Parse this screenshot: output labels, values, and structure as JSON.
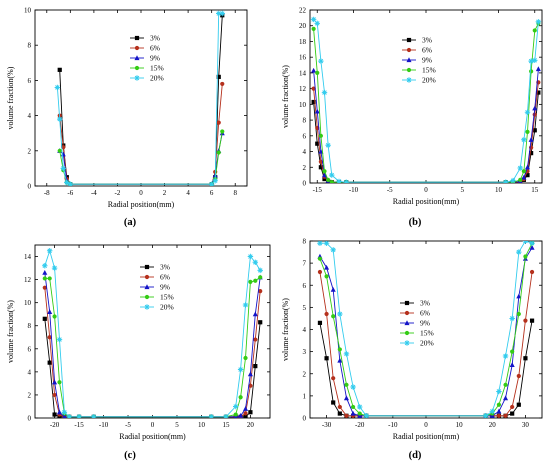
{
  "figure": {
    "background": "#ffffff"
  },
  "series_styles": [
    {
      "name": "3%",
      "color": "#000000",
      "marker": "square"
    },
    {
      "name": "6%",
      "color": "#b5301c",
      "marker": "circle"
    },
    {
      "name": "9%",
      "color": "#1414c8",
      "marker": "triangle-up"
    },
    {
      "name": "15%",
      "color": "#33cc14",
      "marker": "circle"
    },
    {
      "name": "20%",
      "color": "#33ccee",
      "marker": "star"
    }
  ],
  "chart_data": [
    {
      "panel_label": "(a)",
      "type": "line",
      "xlabel": "Radial position(mm)",
      "ylabel": "volume fraction(%)",
      "xlim": [
        -9,
        9
      ],
      "ylim": [
        0,
        10
      ],
      "xticks": [
        "-8",
        "-6",
        "-4",
        "-2",
        "0",
        "2",
        "4",
        "6",
        "8"
      ],
      "yticks": [
        "0",
        "2",
        "4",
        "6",
        "8",
        "10"
      ],
      "legend_position": "upper-center",
      "series": [
        {
          "name": "3%",
          "x": [
            -6.9,
            -6.6,
            -6.3,
            -6.0,
            6.0,
            6.3,
            6.6,
            6.9
          ],
          "y": [
            6.6,
            2.3,
            0.5,
            0.1,
            0.1,
            0.5,
            6.2,
            9.7
          ]
        },
        {
          "name": "6%",
          "x": [
            -6.9,
            -6.6,
            -6.3,
            -6.0,
            6.0,
            6.3,
            6.6,
            6.9
          ],
          "y": [
            4.0,
            2.2,
            0.4,
            0.1,
            0.1,
            0.8,
            3.6,
            5.8
          ]
        },
        {
          "name": "9%",
          "x": [
            -6.9,
            -6.6,
            -6.3,
            -6.0,
            6.0,
            6.3,
            6.6,
            6.9
          ],
          "y": [
            2.0,
            1.8,
            0.3,
            0.1,
            0.1,
            0.6,
            2.0,
            3.0
          ]
        },
        {
          "name": "15%",
          "x": [
            -6.9,
            -6.6,
            -6.3,
            -6.0,
            6.0,
            6.3,
            6.6,
            6.9
          ],
          "y": [
            2.0,
            0.9,
            0.2,
            0.1,
            0.1,
            0.4,
            1.9,
            3.1
          ]
        },
        {
          "name": "20%",
          "x": [
            -7.1,
            -6.9,
            -6.6,
            -6.3,
            -6.0,
            6.0,
            6.3,
            6.6,
            6.9
          ],
          "y": [
            5.6,
            3.8,
            1.0,
            0.2,
            0.1,
            0.1,
            0.3,
            9.8,
            9.8
          ]
        }
      ]
    },
    {
      "panel_label": "(b)",
      "type": "line",
      "xlabel": "Radial position(mm)",
      "ylabel": "volume fraction(%)",
      "xlim": [
        -16,
        16
      ],
      "ylim": [
        0,
        22
      ],
      "xticks": [
        "-15",
        "-10",
        "-5",
        "0",
        "5",
        "10",
        "15"
      ],
      "yticks": [
        "0",
        "2",
        "4",
        "6",
        "8",
        "10",
        "12",
        "14",
        "16",
        "18",
        "20",
        "22"
      ],
      "legend_position": "upper-center",
      "series": [
        {
          "name": "3%",
          "x": [
            -15.5,
            -15.0,
            -14.5,
            -14.0,
            -13.5,
            -13.0,
            -12.0,
            -11.0,
            11.0,
            12.0,
            13.0,
            13.5,
            14.0,
            14.5,
            15.0,
            15.5
          ],
          "y": [
            10.3,
            5.0,
            2.0,
            0.5,
            0.2,
            0.1,
            0.1,
            0.1,
            0.1,
            0.1,
            0.1,
            0.4,
            1.0,
            3.8,
            6.7,
            11.5
          ]
        },
        {
          "name": "6%",
          "x": [
            -15.5,
            -15.0,
            -14.5,
            -14.0,
            -13.5,
            -13.0,
            -12.0,
            -11.0,
            11.0,
            12.0,
            13.0,
            13.5,
            14.0,
            14.5,
            15.0,
            15.5
          ],
          "y": [
            12.0,
            7.0,
            2.7,
            0.8,
            0.3,
            0.1,
            0.1,
            0.1,
            0.1,
            0.1,
            0.1,
            0.5,
            1.5,
            4.5,
            8.7,
            12.8
          ]
        },
        {
          "name": "9%",
          "x": [
            -15.5,
            -15.0,
            -14.5,
            -14.0,
            -13.5,
            -13.0,
            -12.0,
            -11.0,
            11.0,
            12.0,
            13.0,
            13.5,
            14.0,
            14.5,
            15.0,
            15.5
          ],
          "y": [
            14.3,
            9.1,
            4.0,
            1.0,
            0.3,
            0.1,
            0.1,
            0.1,
            0.1,
            0.1,
            0.2,
            0.7,
            2.0,
            5.5,
            9.5,
            14.5
          ]
        },
        {
          "name": "15%",
          "x": [
            -15.5,
            -15.0,
            -14.5,
            -14.0,
            -13.5,
            -13.0,
            -12.0,
            -11.0,
            11.0,
            12.0,
            13.0,
            13.5,
            14.0,
            14.5,
            15.0,
            15.5
          ],
          "y": [
            19.6,
            14.0,
            6.0,
            1.5,
            0.4,
            0.1,
            0.1,
            0.1,
            0.1,
            0.1,
            0.4,
            1.5,
            6.5,
            14.2,
            19.4,
            20.3
          ]
        },
        {
          "name": "20%",
          "x": [
            -15.5,
            -15.0,
            -14.5,
            -14.0,
            -13.5,
            -13.0,
            -12.0,
            -11.0,
            11.0,
            12.0,
            13.0,
            13.5,
            14.0,
            14.5,
            15.0,
            15.5
          ],
          "y": [
            20.8,
            20.3,
            15.5,
            11.5,
            4.8,
            1.0,
            0.2,
            0.1,
            0.1,
            0.3,
            1.9,
            5.5,
            9.0,
            15.5,
            15.6,
            20.5
          ]
        }
      ]
    },
    {
      "panel_label": "(c)",
      "type": "line",
      "xlabel": "Radial position(mm)",
      "ylabel": "volume fraction(%)",
      "xlim": [
        -24,
        24
      ],
      "ylim": [
        0,
        15
      ],
      "xticks": [
        "-25",
        "-20",
        "-15",
        "-10",
        "-5",
        "0",
        "5",
        "10",
        "15",
        "20",
        "25"
      ],
      "yticks": [
        "0",
        "2",
        "4",
        "6",
        "8",
        "10",
        "12",
        "14"
      ],
      "legend_position": "upper-center",
      "series": [
        {
          "name": "3%",
          "x": [
            -22,
            -21,
            -20,
            -19,
            -18,
            -17,
            -15,
            -12,
            12,
            15,
            17,
            18,
            19,
            20,
            21,
            22
          ],
          "y": [
            8.6,
            4.8,
            0.3,
            0.1,
            0.1,
            0.1,
            0.1,
            0.1,
            0.1,
            0.1,
            0.1,
            0.1,
            0.1,
            0.5,
            4.5,
            8.3
          ]
        },
        {
          "name": "6%",
          "x": [
            -22,
            -21,
            -20,
            -19,
            -18,
            -17,
            -15,
            -12,
            12,
            15,
            17,
            18,
            19,
            20,
            21,
            22
          ],
          "y": [
            11.3,
            7.0,
            2.0,
            0.3,
            0.1,
            0.1,
            0.1,
            0.1,
            0.1,
            0.1,
            0.1,
            0.1,
            0.4,
            2.8,
            6.8,
            11.0
          ]
        },
        {
          "name": "9%",
          "x": [
            -22,
            -21,
            -20,
            -19,
            -18,
            -17,
            -15,
            -12,
            12,
            15,
            17,
            18,
            19,
            20,
            21,
            22
          ],
          "y": [
            12.6,
            9.2,
            3.1,
            0.5,
            0.1,
            0.1,
            0.1,
            0.1,
            0.1,
            0.1,
            0.1,
            0.2,
            0.8,
            3.8,
            9.0,
            12.2
          ]
        },
        {
          "name": "15%",
          "x": [
            -22,
            -21,
            -20,
            -19,
            -18,
            -17,
            -15,
            -12,
            12,
            15,
            17,
            18,
            19,
            20,
            21,
            22
          ],
          "y": [
            12.1,
            12.1,
            8.8,
            3.1,
            0.4,
            0.1,
            0.1,
            0.1,
            0.1,
            0.1,
            0.3,
            1.8,
            5.2,
            11.8,
            11.9,
            12.2
          ]
        },
        {
          "name": "20%",
          "x": [
            -22,
            -21,
            -20,
            -19,
            -18,
            -17,
            -15,
            -12,
            12,
            15,
            17,
            18,
            19,
            20,
            21,
            22
          ],
          "y": [
            13.2,
            14.5,
            13.0,
            6.8,
            0.5,
            0.1,
            0.1,
            0.1,
            0.1,
            0.1,
            1.0,
            4.2,
            9.8,
            14.0,
            13.5,
            12.8
          ]
        }
      ]
    },
    {
      "panel_label": "(d)",
      "type": "line",
      "xlabel": "Radial position(mm)",
      "ylabel": "volume fraction(%)",
      "xlim": [
        -35,
        35
      ],
      "ylim": [
        0,
        8
      ],
      "xticks": [
        "-30",
        "-20",
        "-10",
        "0",
        "10",
        "20",
        "30"
      ],
      "yticks": [
        "0",
        "1",
        "2",
        "3",
        "4",
        "5",
        "6",
        "7",
        "8"
      ],
      "legend_position": "center",
      "series": [
        {
          "name": "3%",
          "x": [
            -32,
            -30,
            -28,
            -26,
            -24,
            -22,
            -20,
            -18,
            18,
            20,
            22,
            24,
            26,
            28,
            30,
            32
          ],
          "y": [
            4.3,
            2.7,
            0.7,
            0.2,
            0.1,
            0.1,
            0.1,
            0.1,
            0.1,
            0.1,
            0.1,
            0.1,
            0.2,
            0.6,
            2.7,
            4.4
          ]
        },
        {
          "name": "6%",
          "x": [
            -32,
            -30,
            -28,
            -26,
            -24,
            -22,
            -20,
            -18,
            18,
            20,
            22,
            24,
            26,
            28,
            30,
            32
          ],
          "y": [
            6.6,
            4.7,
            1.8,
            0.5,
            0.1,
            0.1,
            0.1,
            0.1,
            0.1,
            0.1,
            0.1,
            0.1,
            0.5,
            1.9,
            4.4,
            6.6
          ]
        },
        {
          "name": "9%",
          "x": [
            -32,
            -30,
            -28,
            -26,
            -24,
            -22,
            -20,
            -18,
            18,
            20,
            22,
            24,
            26,
            28,
            30,
            32
          ],
          "y": [
            7.3,
            6.8,
            5.8,
            2.6,
            0.9,
            0.2,
            0.1,
            0.1,
            0.1,
            0.1,
            0.3,
            0.9,
            2.4,
            5.5,
            7.2,
            7.7
          ]
        },
        {
          "name": "15%",
          "x": [
            -32,
            -30,
            -28,
            -26,
            -24,
            -22,
            -20,
            -18,
            18,
            20,
            22,
            24,
            26,
            28,
            30,
            32
          ],
          "y": [
            7.2,
            6.4,
            4.6,
            3.1,
            1.5,
            0.5,
            0.2,
            0.1,
            0.1,
            0.2,
            0.6,
            1.5,
            3.0,
            4.7,
            7.3,
            7.9
          ]
        },
        {
          "name": "20%",
          "x": [
            -32,
            -30,
            -28,
            -26,
            -24,
            -22,
            -20,
            -18,
            18,
            20,
            22,
            24,
            26,
            28,
            30,
            32
          ],
          "y": [
            7.9,
            7.9,
            7.6,
            4.7,
            2.9,
            1.4,
            0.5,
            0.1,
            0.1,
            0.3,
            1.2,
            2.8,
            4.5,
            7.5,
            8.0,
            7.9
          ]
        }
      ]
    }
  ]
}
